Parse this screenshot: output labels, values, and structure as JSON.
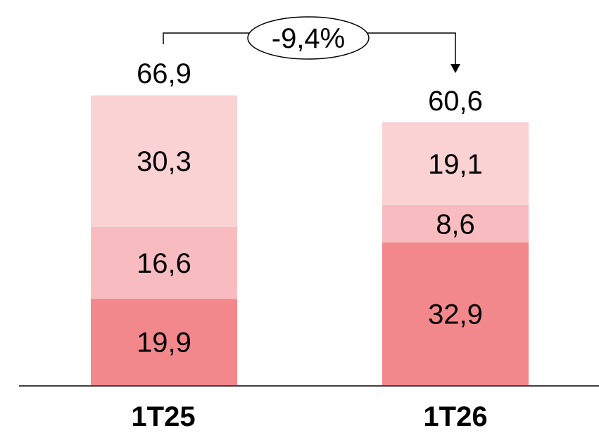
{
  "chart_data": {
    "type": "bar",
    "stacked": true,
    "categories": [
      "1T25",
      "1T26"
    ],
    "series": [
      {
        "values": [
          19.9,
          32.9
        ],
        "labels": [
          "19,9",
          "32,9"
        ],
        "color": "#f2878c"
      },
      {
        "values": [
          16.6,
          8.6
        ],
        "labels": [
          "16,6",
          "8,6"
        ],
        "color": "#f8bcc0"
      },
      {
        "values": [
          30.3,
          19.1
        ],
        "labels": [
          "30,3",
          "19,1"
        ],
        "color": "#fad2d3"
      }
    ],
    "totals": [
      66.9,
      60.6
    ],
    "total_labels": [
      "66,9",
      "60,6"
    ],
    "change_label": "-9,4%",
    "title": "",
    "xlabel": "",
    "ylabel": "",
    "ylim": [
      0,
      66.9
    ],
    "grid": false,
    "legend": "none"
  }
}
